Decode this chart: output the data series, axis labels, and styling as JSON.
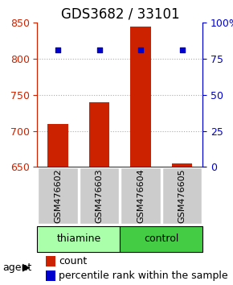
{
  "title": "GDS3682 / 33101",
  "samples": [
    "GSM476602",
    "GSM476603",
    "GSM476604",
    "GSM476605"
  ],
  "counts": [
    710,
    740,
    845,
    655
  ],
  "percentiles": [
    81,
    81,
    81,
    81
  ],
  "y_min": 650,
  "y_max": 850,
  "y_ticks": [
    650,
    700,
    750,
    800,
    850
  ],
  "y2_ticks": [
    0,
    25,
    50,
    75,
    100
  ],
  "bar_color": "#cc2200",
  "dot_color": "#0000cc",
  "bar_width": 0.5,
  "groups": [
    {
      "label": "thiamine",
      "samples": [
        0,
        1
      ],
      "color": "#aaffaa"
    },
    {
      "label": "control",
      "samples": [
        2,
        3
      ],
      "color": "#44cc44"
    }
  ],
  "agent_label": "agent",
  "legend_count_label": "count",
  "legend_pct_label": "percentile rank within the sample",
  "plot_bg": "#ffffff",
  "sample_label_bg": "#cccccc",
  "grid_color": "#aaaaaa",
  "title_fontsize": 12,
  "tick_fontsize": 9,
  "label_fontsize": 9,
  "sample_label_fontsize": 8
}
